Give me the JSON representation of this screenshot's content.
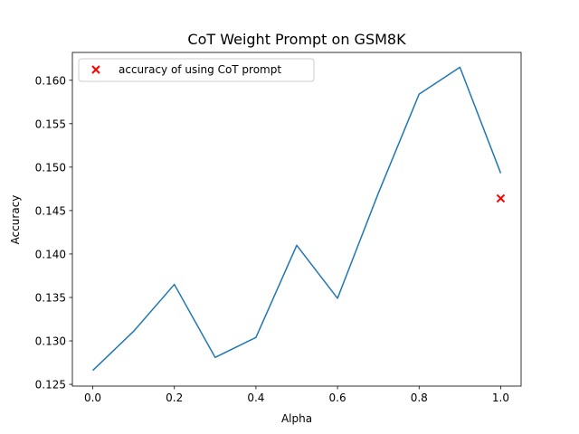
{
  "chart_data": {
    "type": "line",
    "title": "CoT Weight Prompt on GSM8K",
    "xlabel": "Alpha",
    "ylabel": "Accuracy",
    "xlim": [
      -0.05,
      1.05
    ],
    "ylim": [
      0.1248,
      0.1632
    ],
    "x_ticks": [
      0.0,
      0.2,
      0.4,
      0.6,
      0.8,
      1.0
    ],
    "x_tick_labels": [
      "0.0",
      "0.2",
      "0.4",
      "0.6",
      "0.8",
      "1.0"
    ],
    "y_ticks": [
      0.125,
      0.13,
      0.135,
      0.14,
      0.145,
      0.15,
      0.155,
      0.16
    ],
    "y_tick_labels": [
      "0.125",
      "0.130",
      "0.135",
      "0.140",
      "0.145",
      "0.150",
      "0.155",
      "0.160"
    ],
    "grid": false,
    "legend_position": "upper-left",
    "series": [
      {
        "style": "line",
        "color": "#1f77b4",
        "x": [
          0.0,
          0.1,
          0.2,
          0.3,
          0.4,
          0.5,
          0.6,
          0.7,
          0.8,
          0.9,
          1.0
        ],
        "values": [
          0.1266,
          0.1311,
          0.1365,
          0.1281,
          0.1304,
          0.141,
          0.1349,
          0.147,
          0.1584,
          0.1615,
          0.1493
        ]
      },
      {
        "name": "accuracy of using CoT prompt",
        "style": "marker-x",
        "color": "#ff0000",
        "x": [
          1.0
        ],
        "values": [
          0.1464
        ]
      }
    ]
  }
}
